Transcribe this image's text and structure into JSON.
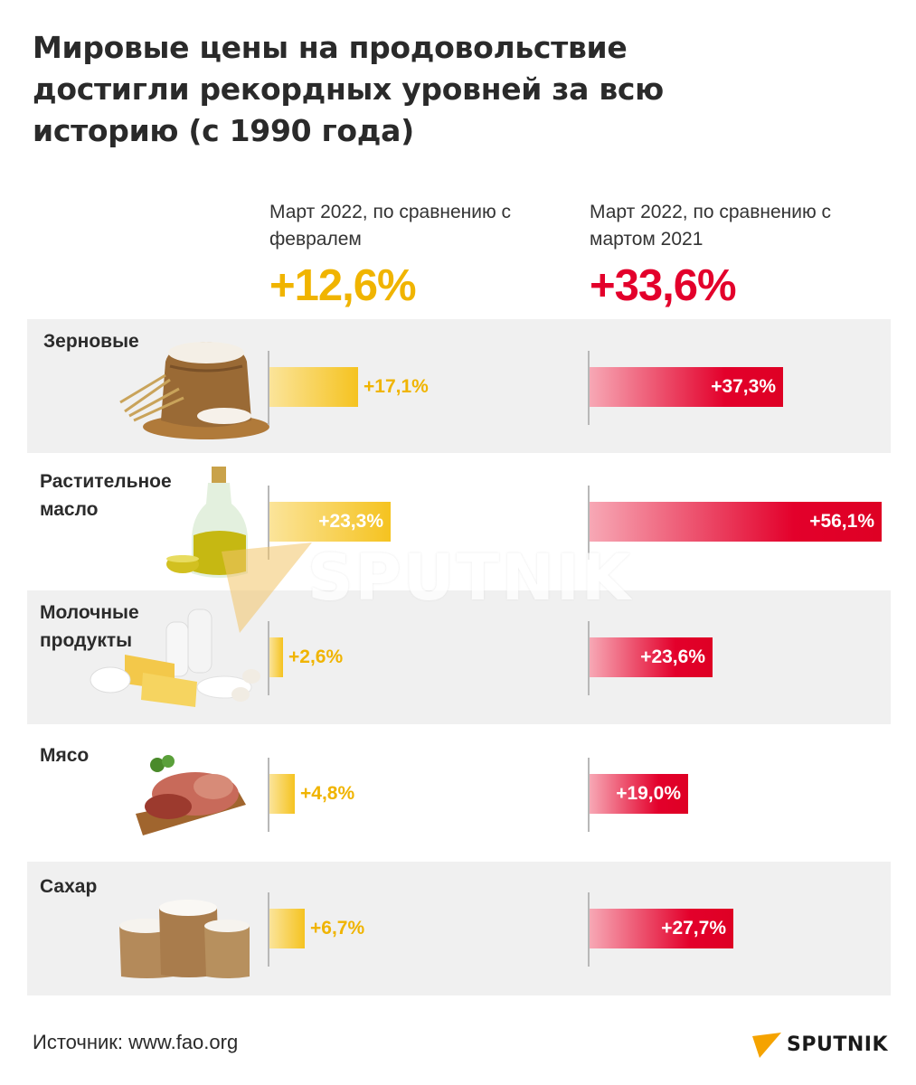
{
  "title": "Мировые цены на продовольствие достигли рекордных уровней за всю историю (с 1990 года)",
  "columns": [
    {
      "heading": "Март 2022, по сравнению с февралем",
      "total": "+12,6%"
    },
    {
      "heading": "Март 2022, по сравнению с мартом 2021",
      "total": "+33,6%"
    }
  ],
  "source": "Источник: www.fao.org",
  "brand": "SPUTNIK",
  "watermark": "SPUTNIK",
  "colors": {
    "yellow": "#f5c320",
    "yellow_text": "#f0b400",
    "red": "#e3002b",
    "band": "#f0f0f0"
  },
  "chart_data": {
    "type": "bar",
    "categories": [
      "Зерновые",
      "Растительное масло",
      "Молочные продукты",
      "Мясо",
      "Сахар"
    ],
    "category_icons": [
      "grain-sack-icon",
      "oil-bottle-icon",
      "dairy-icon",
      "meat-icon",
      "sugar-sacks-icon"
    ],
    "series": [
      {
        "name": "Март 2022, по сравнению с февралем",
        "values": [
          17.1,
          23.3,
          2.6,
          4.8,
          6.7
        ],
        "labels": [
          "+17,1%",
          "+23,3%",
          "+2,6%",
          "+4,8%",
          "+6,7%"
        ]
      },
      {
        "name": "Март 2022, по сравнению с мартом 2021",
        "values": [
          37.3,
          56.1,
          23.6,
          19.0,
          27.7
        ],
        "labels": [
          "+37,3%",
          "+56,1%",
          "+23,6%",
          "+19,0%",
          "+27,7%"
        ]
      }
    ]
  }
}
